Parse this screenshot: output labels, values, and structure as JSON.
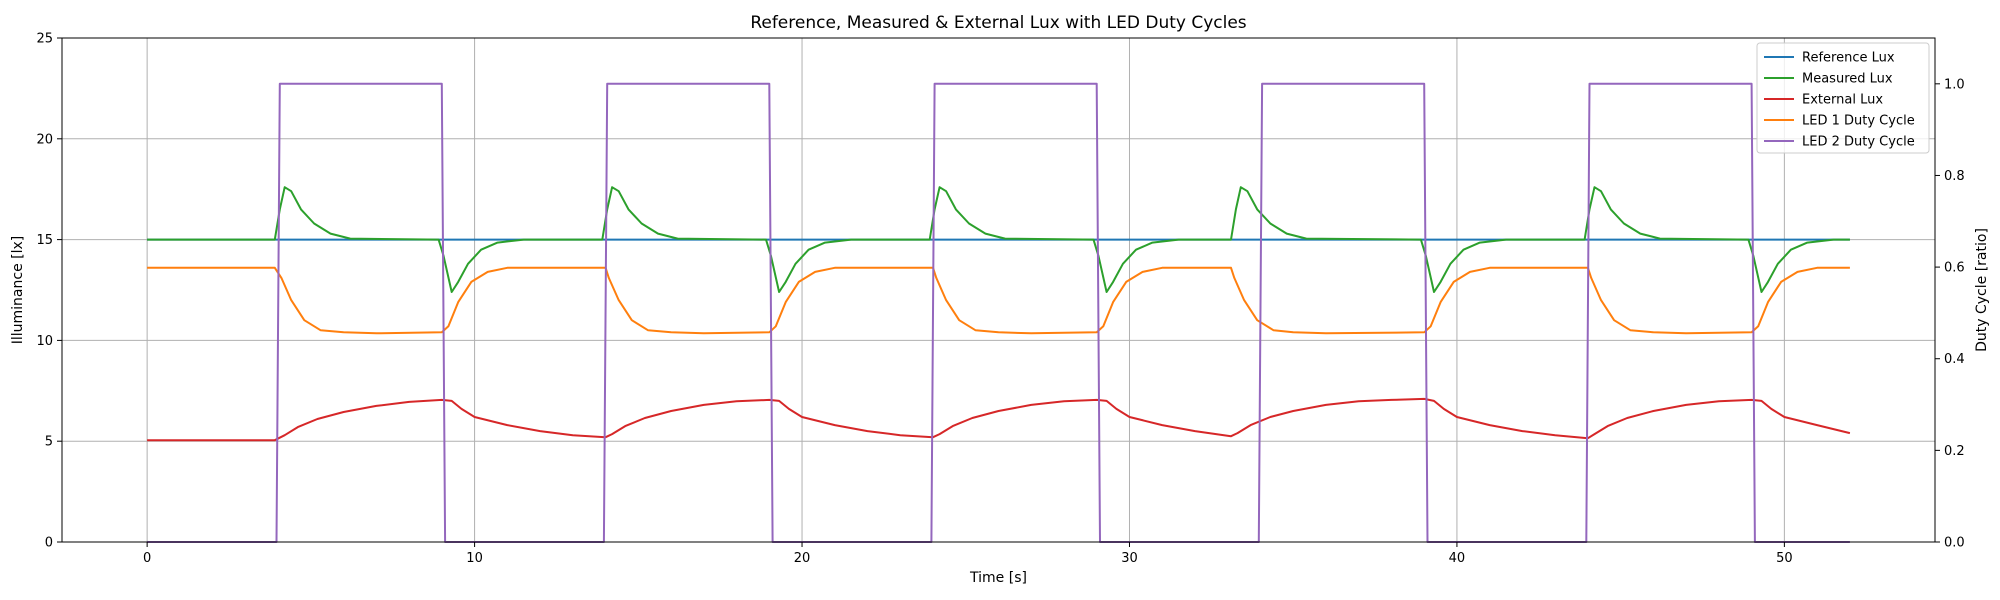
{
  "chart_data": {
    "type": "line",
    "title": "Reference, Measured & External Lux with LED Duty Cycles",
    "xlabel": "Time [s]",
    "ylabel": "Illuminance [lx]",
    "y2label": "Duty Cycle [ratio]",
    "xlim": [
      -2.6,
      54.6
    ],
    "ylim": [
      0,
      25
    ],
    "y2lim": [
      0,
      1.1
    ],
    "xticks": [
      0,
      10,
      20,
      30,
      40,
      50
    ],
    "yticks": [
      0,
      5,
      10,
      15,
      20,
      25
    ],
    "y2ticks": [
      0.0,
      0.2,
      0.4,
      0.6,
      0.8,
      1.0
    ],
    "grid": true,
    "legend_position": "top-right",
    "series": [
      {
        "name": "Reference Lux",
        "color": "#1f77b4",
        "axis": "left",
        "x": [
          0,
          52
        ],
        "y": [
          15,
          15
        ]
      },
      {
        "name": "Measured Lux",
        "color": "#2ca02c",
        "axis": "left",
        "x": [
          0,
          3.9,
          4.05,
          4.2,
          4.4,
          4.7,
          5.1,
          5.6,
          6.2,
          8.9,
          9.05,
          9.3,
          9.5,
          9.8,
          10.2,
          10.7,
          11.5,
          13.9,
          14.05,
          14.2,
          14.4,
          14.7,
          15.1,
          15.6,
          16.2,
          18.9,
          19.05,
          19.3,
          19.5,
          19.8,
          20.2,
          20.7,
          21.5,
          23.9,
          24.05,
          24.2,
          24.4,
          24.7,
          25.1,
          25.6,
          26.2,
          28.9,
          29.05,
          29.3,
          29.5,
          29.8,
          30.2,
          30.7,
          31.5,
          33.1,
          33.25,
          33.4,
          33.6,
          33.9,
          34.3,
          34.8,
          35.4,
          38.9,
          39.05,
          39.3,
          39.5,
          39.8,
          40.2,
          40.7,
          41.5,
          43.9,
          44.05,
          44.2,
          44.4,
          44.7,
          45.1,
          45.6,
          46.2,
          48.9,
          49.05,
          49.3,
          49.5,
          49.8,
          50.2,
          50.7,
          51.5,
          52
        ],
        "y": [
          15,
          15,
          16.5,
          17.6,
          17.4,
          16.5,
          15.8,
          15.3,
          15.05,
          15,
          14.2,
          12.4,
          12.9,
          13.8,
          14.5,
          14.85,
          15,
          15,
          16.5,
          17.6,
          17.4,
          16.5,
          15.8,
          15.3,
          15.05,
          15,
          14.2,
          12.4,
          12.9,
          13.8,
          14.5,
          14.85,
          15,
          15,
          16.5,
          17.6,
          17.4,
          16.5,
          15.8,
          15.3,
          15.05,
          15,
          14.2,
          12.4,
          12.9,
          13.8,
          14.5,
          14.85,
          15,
          15,
          16.5,
          17.6,
          17.4,
          16.5,
          15.8,
          15.3,
          15.05,
          15,
          14.2,
          12.4,
          12.9,
          13.8,
          14.5,
          14.85,
          15,
          15,
          16.5,
          17.6,
          17.4,
          16.5,
          15.8,
          15.3,
          15.05,
          15,
          14.2,
          12.4,
          12.9,
          13.8,
          14.5,
          14.85,
          15,
          15
        ]
      },
      {
        "name": "External Lux",
        "color": "#d62728",
        "axis": "left",
        "x": [
          0,
          3.9,
          4.2,
          4.6,
          5.2,
          6,
          7,
          8,
          9,
          9.3,
          9.6,
          10,
          11,
          12,
          13,
          14,
          14.2,
          14.6,
          15.2,
          16,
          17,
          18,
          19,
          19.3,
          19.6,
          20,
          21,
          22,
          23,
          24,
          24.2,
          24.6,
          25.2,
          26,
          27,
          28,
          29,
          29.3,
          29.6,
          30,
          31,
          32,
          33.1,
          33.3,
          33.7,
          34.3,
          35,
          36,
          37,
          38,
          39,
          39.3,
          39.6,
          40,
          41,
          42,
          43,
          44,
          44.2,
          44.6,
          45.2,
          46,
          47,
          48,
          49,
          49.3,
          49.6,
          50,
          51,
          52
        ],
        "y": [
          5.05,
          5.05,
          5.3,
          5.7,
          6.1,
          6.45,
          6.75,
          6.95,
          7.05,
          7.0,
          6.6,
          6.2,
          5.8,
          5.5,
          5.3,
          5.2,
          5.35,
          5.75,
          6.15,
          6.5,
          6.8,
          6.98,
          7.05,
          7.0,
          6.6,
          6.2,
          5.8,
          5.5,
          5.3,
          5.2,
          5.35,
          5.75,
          6.15,
          6.5,
          6.8,
          6.98,
          7.05,
          7.0,
          6.6,
          6.2,
          5.8,
          5.5,
          5.25,
          5.4,
          5.8,
          6.2,
          6.5,
          6.8,
          6.98,
          7.05,
          7.1,
          7.0,
          6.6,
          6.2,
          5.8,
          5.5,
          5.3,
          5.15,
          5.35,
          5.75,
          6.15,
          6.5,
          6.8,
          6.98,
          7.05,
          7.0,
          6.6,
          6.2,
          5.8,
          5.4
        ]
      },
      {
        "name": "LED 1 Duty Cycle",
        "color": "#ff7f0e",
        "axis": "left",
        "x": [
          0,
          3.9,
          4.1,
          4.4,
          4.8,
          5.3,
          6,
          7,
          9,
          9.2,
          9.5,
          9.9,
          10.4,
          11,
          12,
          14,
          14.1,
          14.4,
          14.8,
          15.3,
          16,
          17,
          19,
          19.2,
          19.5,
          19.9,
          20.4,
          21,
          22,
          24,
          24.1,
          24.4,
          24.8,
          25.3,
          26,
          27,
          29,
          29.2,
          29.5,
          29.9,
          30.4,
          31,
          32,
          33.1,
          33.2,
          33.5,
          33.9,
          34.4,
          35,
          36,
          39,
          39.2,
          39.5,
          39.9,
          40.4,
          41,
          42,
          44,
          44.1,
          44.4,
          44.8,
          45.3,
          46,
          47,
          49,
          49.2,
          49.5,
          49.9,
          50.4,
          51,
          52
        ],
        "y": [
          13.6,
          13.6,
          13.1,
          12.0,
          11.0,
          10.5,
          10.4,
          10.35,
          10.4,
          10.7,
          11.9,
          12.9,
          13.4,
          13.6,
          13.6,
          13.6,
          13.1,
          12.0,
          11.0,
          10.5,
          10.4,
          10.35,
          10.4,
          10.7,
          11.9,
          12.9,
          13.4,
          13.6,
          13.6,
          13.6,
          13.1,
          12.0,
          11.0,
          10.5,
          10.4,
          10.35,
          10.4,
          10.7,
          11.9,
          12.9,
          13.4,
          13.6,
          13.6,
          13.6,
          13.1,
          12.0,
          11.0,
          10.5,
          10.4,
          10.35,
          10.4,
          10.7,
          11.9,
          12.9,
          13.4,
          13.6,
          13.6,
          13.6,
          13.1,
          12.0,
          11.0,
          10.5,
          10.4,
          10.35,
          10.4,
          10.7,
          11.9,
          12.9,
          13.4,
          13.6,
          13.6
        ]
      },
      {
        "name": "LED 2 Duty Cycle",
        "color": "#9467bd",
        "axis": "right",
        "x": [
          0,
          3.95,
          4.05,
          9.0,
          9.1,
          13.95,
          14.05,
          19.0,
          19.1,
          23.95,
          24.05,
          29.0,
          29.1,
          33.95,
          34.05,
          39.0,
          39.1,
          43.95,
          44.05,
          49.0,
          49.1,
          52
        ],
        "y": [
          0,
          0,
          1,
          1,
          0,
          0,
          1,
          1,
          0,
          0,
          1,
          1,
          0,
          0,
          1,
          1,
          0,
          0,
          1,
          1,
          0,
          0
        ]
      }
    ]
  }
}
